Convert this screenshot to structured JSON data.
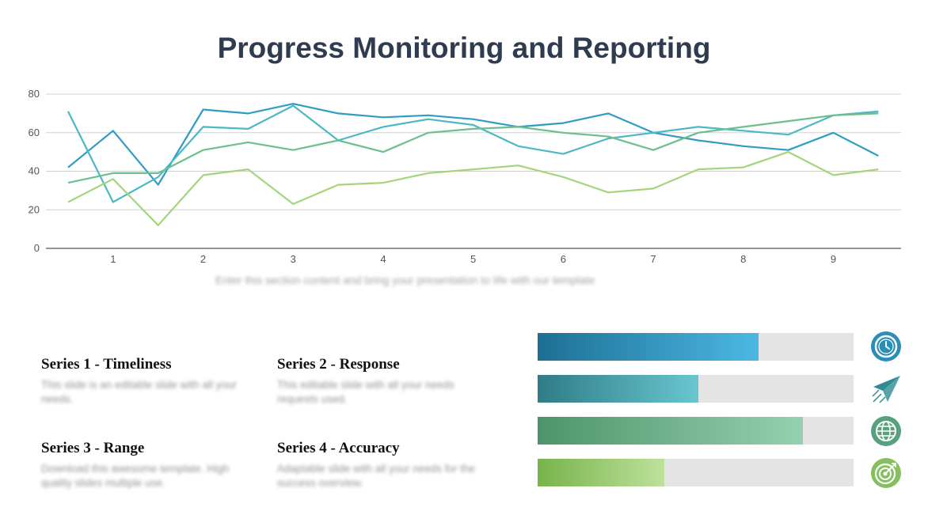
{
  "title": "Progress Monitoring and Reporting",
  "chart_data": {
    "type": "line",
    "x": [
      0.5,
      1,
      1.5,
      2,
      2.5,
      3,
      3.5,
      4,
      4.5,
      5,
      5.5,
      6,
      6.5,
      7,
      7.5,
      8,
      8.5,
      9,
      9.5
    ],
    "xticks": [
      "1",
      "2",
      "3",
      "4",
      "5",
      "6",
      "7",
      "8",
      "9"
    ],
    "ylim": [
      0,
      80
    ],
    "yticks": [
      0,
      20,
      40,
      60,
      80
    ],
    "grid": true,
    "series": [
      {
        "color": "#2f9cc4",
        "values": [
          42,
          61,
          33,
          72,
          70,
          75,
          70,
          68,
          69,
          67,
          63,
          65,
          70,
          60,
          56,
          53,
          51,
          60,
          48
        ]
      },
      {
        "color": "#4cb8c4",
        "values": [
          71,
          24,
          37,
          63,
          62,
          74,
          56,
          63,
          67,
          64,
          53,
          49,
          57,
          60,
          63,
          61,
          59,
          69,
          71
        ]
      },
      {
        "color": "#6cbf8f",
        "values": [
          34,
          39,
          39,
          51,
          55,
          51,
          56,
          50,
          60,
          62,
          63,
          60,
          58,
          51,
          60,
          63,
          66,
          69,
          70
        ]
      },
      {
        "color": "#a3d67b",
        "values": [
          24,
          36,
          12,
          38,
          41,
          23,
          33,
          34,
          39,
          41,
          43,
          37,
          29,
          31,
          41,
          42,
          50,
          38,
          41
        ]
      }
    ]
  },
  "caption": "Enter this section content and bring your presentation to life with our template",
  "cards": [
    {
      "title": "Series 1 - Timeliness",
      "text": "This slide is an editable slide with all your needs."
    },
    {
      "title": "Series 2 - Response",
      "text": "This editable slide with all your needs requests used."
    },
    {
      "title": "Series 3 - Range",
      "text": "Download this awesome template. High quality slides multiple use."
    },
    {
      "title": "Series 4 - Accuracy",
      "text": "Adaptable slide with all your needs for the success overview."
    }
  ],
  "progress": [
    {
      "value": 0.7,
      "from": "#1d6f93",
      "to": "#4cb8e4",
      "icon": "clock-icon",
      "icon_color": "#2a8fb8"
    },
    {
      "value": 0.51,
      "from": "#2f7c85",
      "to": "#69c6cf",
      "icon": "paper-plane-icon",
      "icon_color": "#2f8c92"
    },
    {
      "value": 0.84,
      "from": "#4e946a",
      "to": "#95d1ae",
      "icon": "globe-icon",
      "icon_color": "#58a07e"
    },
    {
      "value": 0.4,
      "from": "#78b34a",
      "to": "#bde19c",
      "icon": "target-icon",
      "icon_color": "#86bf5f"
    }
  ]
}
